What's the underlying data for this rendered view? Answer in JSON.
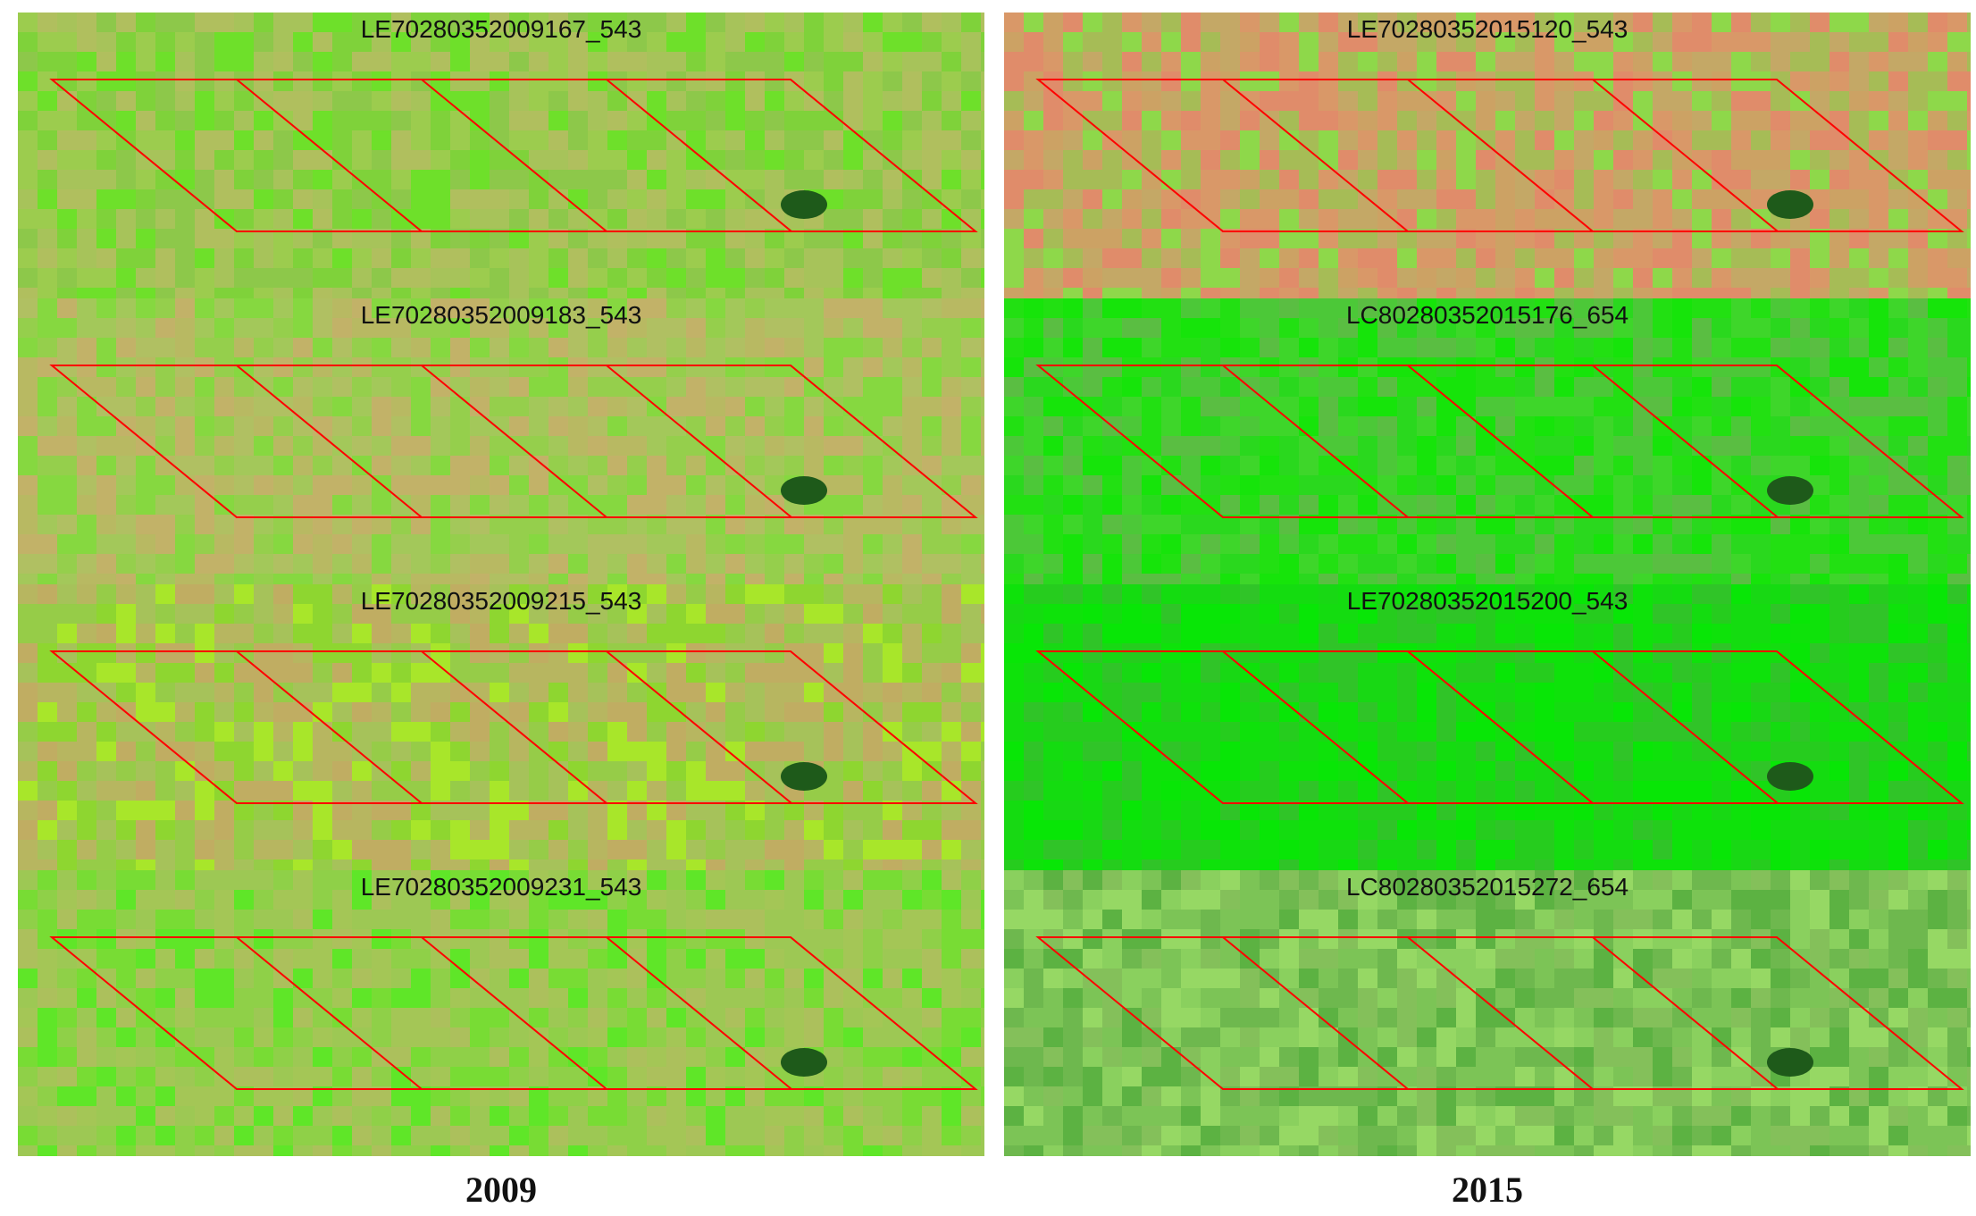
{
  "columns": [
    {
      "year": "2009",
      "panels": [
        {
          "label": "LE70280352009167_543",
          "palette": [
            "#8dc84a",
            "#9ccc4e",
            "#7fd23a",
            "#a7c35a",
            "#6ee02a",
            "#b0bf5e"
          ]
        },
        {
          "label": "LE70280352009183_543",
          "palette": [
            "#a3c85a",
            "#b0c062",
            "#95cf4c",
            "#b8b962",
            "#86d840",
            "#c2b268"
          ]
        },
        {
          "label": "LE70280352009215_543",
          "palette": [
            "#a6c25a",
            "#b7b660",
            "#96cc48",
            "#c0ad62",
            "#8ed630",
            "#a8e62a"
          ]
        },
        {
          "label": "LE70280352009231_543",
          "palette": [
            "#8fd048",
            "#9dc854",
            "#78dc34",
            "#acc05c",
            "#5fe628",
            "#a4c656"
          ]
        }
      ]
    },
    {
      "year": "2015",
      "panels": [
        {
          "label": "LE70280352015120_543",
          "palette": [
            "#cca264",
            "#d99868",
            "#a6bc56",
            "#e08c6a",
            "#8ed84a",
            "#c4a866"
          ]
        },
        {
          "label": "LC80280352015176_654",
          "palette": [
            "#3ed62a",
            "#22e012",
            "#4cc838",
            "#16e40a",
            "#5abe42",
            "#2ad81e"
          ]
        },
        {
          "label": "LE70280352015200_543",
          "palette": [
            "#18d814",
            "#0ee20a",
            "#26cc1e",
            "#08e606",
            "#30c428",
            "#14dc10"
          ]
        },
        {
          "label": "LC80280352015272_654",
          "palette": [
            "#7cc456",
            "#8ad05e",
            "#6eb84e",
            "#96d864",
            "#5cb242",
            "#84c05a"
          ]
        }
      ]
    }
  ],
  "polygon_color": "#ff0000"
}
